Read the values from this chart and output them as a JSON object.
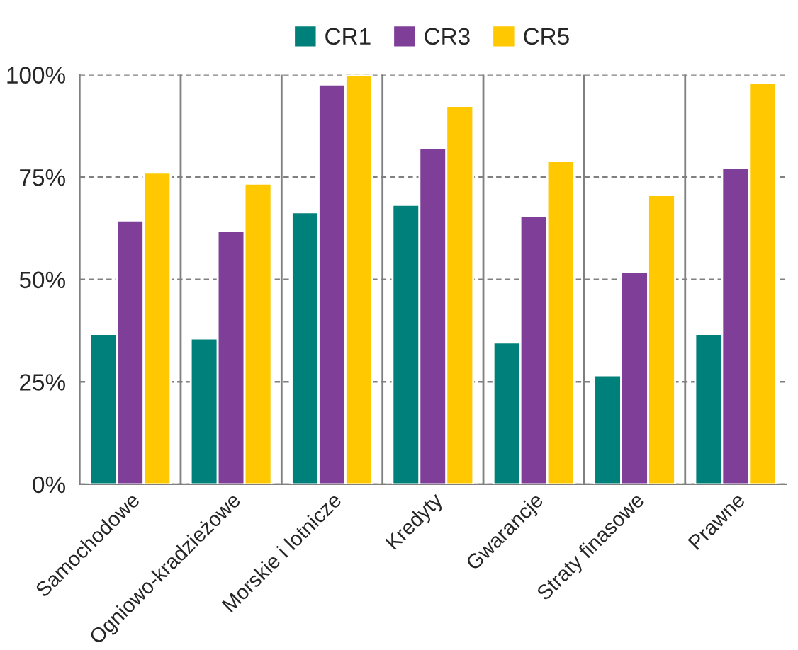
{
  "chart_data": {
    "type": "bar",
    "categories": [
      "Samochodowe",
      "Ogniowo-kradzieżowe",
      "Morskie i lotnicze",
      "Kredyty",
      "Gwarancje",
      "Straty finasowe",
      "Prawne"
    ],
    "series": [
      {
        "name": "CR1",
        "color": "#00807a",
        "values": [
          36.7,
          35.6,
          66.4,
          68.2,
          34.6,
          26.6,
          36.7
        ]
      },
      {
        "name": "CR3",
        "color": "#7f3f98",
        "values": [
          64.4,
          61.9,
          97.6,
          82.0,
          65.4,
          51.9,
          77.2
        ]
      },
      {
        "name": "CR5",
        "color": "#ffc800",
        "values": [
          76.1,
          73.4,
          100,
          92.4,
          78.9,
          70.6,
          97.9
        ]
      }
    ],
    "ylim": [
      0,
      100
    ],
    "yticks": [
      {
        "value": 0,
        "label": "0%"
      },
      {
        "value": 25,
        "label": "25%"
      },
      {
        "value": 50,
        "label": "50%"
      },
      {
        "value": 75,
        "label": "75%"
      },
      {
        "value": 100,
        "label": "100%"
      }
    ],
    "grid": true,
    "legend": "top"
  }
}
